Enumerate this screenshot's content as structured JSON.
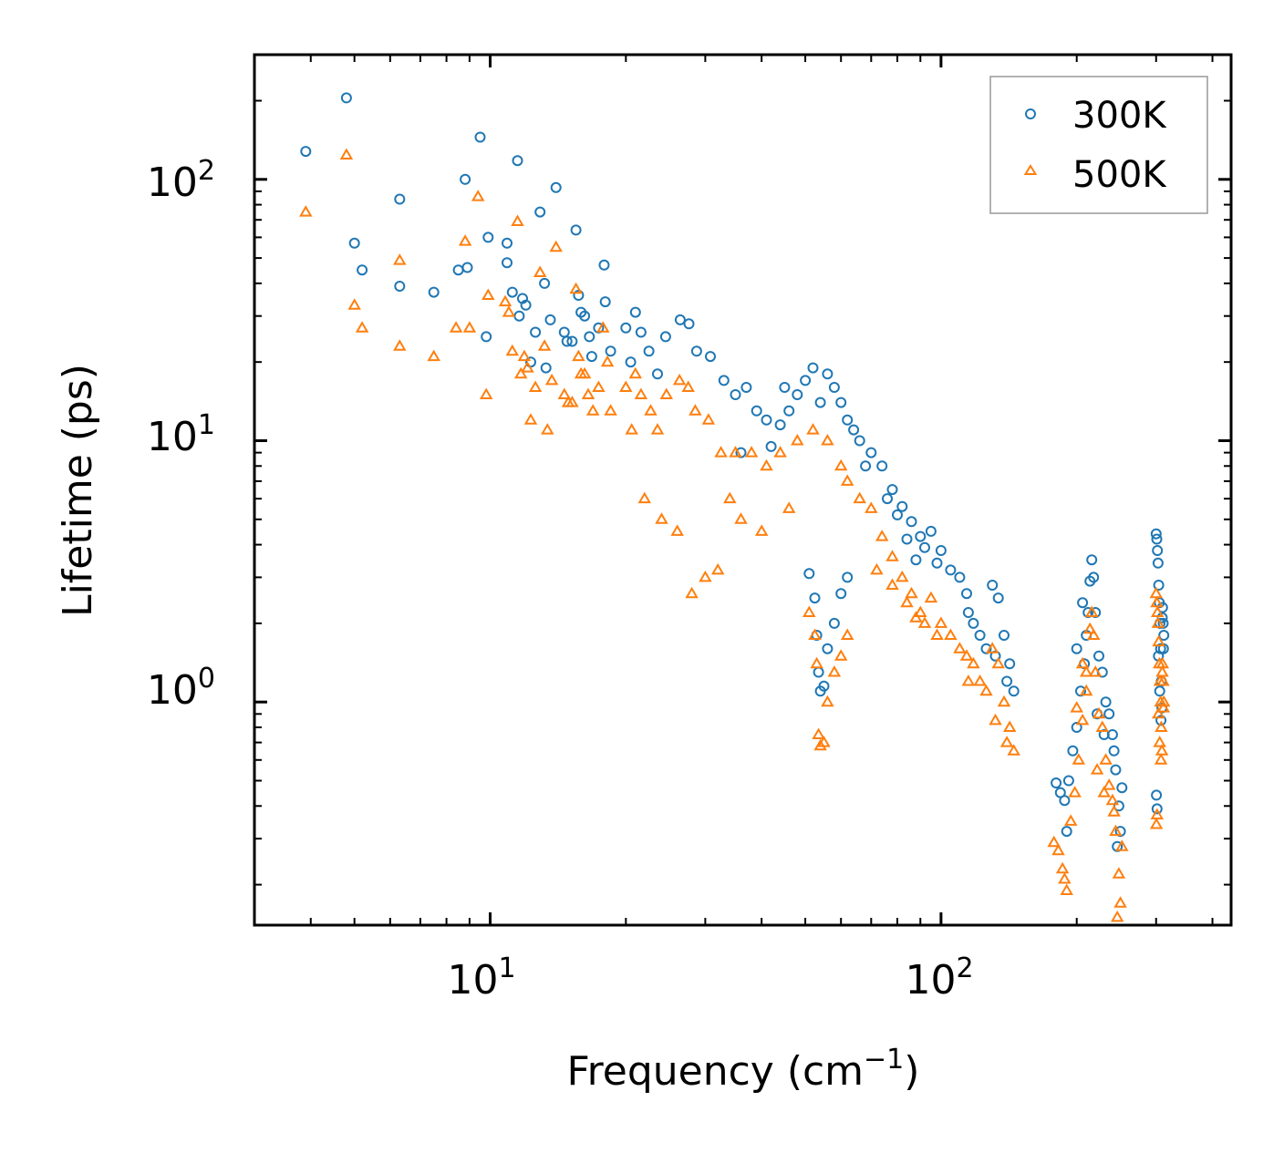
{
  "chart_data": {
    "type": "scatter",
    "title": "",
    "xlabel": "Frequency (cm",
    "xlabel_sup": "−1",
    "xlabel_suffix": ")",
    "ylabel": "Lifetime (ps)",
    "xscale": "log",
    "yscale": "log",
    "xlim": [
      3.0,
      440
    ],
    "ylim": [
      0.14,
      300
    ],
    "x_ticks": [
      {
        "base": "10",
        "exp": "1",
        "value": 10
      },
      {
        "base": "10",
        "exp": "2",
        "value": 100
      }
    ],
    "y_ticks": [
      {
        "base": "10",
        "exp": "0",
        "value": 1
      },
      {
        "base": "10",
        "exp": "1",
        "value": 10
      },
      {
        "base": "10",
        "exp": "2",
        "value": 100
      }
    ],
    "grid": false,
    "legend": {
      "position": "top-right"
    },
    "series": [
      {
        "name": "300K",
        "marker": "circle",
        "color": "#1f77b4",
        "points": [
          [
            3.9,
            128
          ],
          [
            4.8,
            205
          ],
          [
            5.0,
            57
          ],
          [
            5.2,
            45
          ],
          [
            6.3,
            84
          ],
          [
            6.3,
            39
          ],
          [
            7.5,
            37
          ],
          [
            8.5,
            45
          ],
          [
            8.8,
            100
          ],
          [
            8.9,
            46
          ],
          [
            9.5,
            145
          ],
          [
            9.8,
            25
          ],
          [
            9.9,
            60
          ],
          [
            10.9,
            57
          ],
          [
            10.9,
            48
          ],
          [
            11.2,
            37
          ],
          [
            11.5,
            118
          ],
          [
            11.6,
            30
          ],
          [
            11.8,
            35
          ],
          [
            12.0,
            33
          ],
          [
            12.3,
            20
          ],
          [
            12.6,
            26
          ],
          [
            12.9,
            75
          ],
          [
            13.2,
            40
          ],
          [
            13.3,
            19
          ],
          [
            13.6,
            29
          ],
          [
            14.0,
            93
          ],
          [
            14.6,
            26
          ],
          [
            14.8,
            24
          ],
          [
            15.2,
            24
          ],
          [
            15.5,
            64
          ],
          [
            15.7,
            36
          ],
          [
            15.9,
            31
          ],
          [
            16.2,
            30
          ],
          [
            16.6,
            25
          ],
          [
            16.8,
            21
          ],
          [
            17.4,
            27
          ],
          [
            17.9,
            47
          ],
          [
            18.0,
            34
          ],
          [
            18.5,
            22
          ],
          [
            20.0,
            27
          ],
          [
            20.5,
            20
          ],
          [
            21.0,
            31
          ],
          [
            21.6,
            26
          ],
          [
            22.5,
            22
          ],
          [
            23.5,
            18
          ],
          [
            24.5,
            25
          ],
          [
            26.4,
            29
          ],
          [
            27.6,
            28
          ],
          [
            28.7,
            22
          ],
          [
            30.8,
            21
          ],
          [
            33.0,
            17
          ],
          [
            35.0,
            15
          ],
          [
            37.0,
            16
          ],
          [
            39.0,
            13
          ],
          [
            41.0,
            12
          ],
          [
            45.0,
            16
          ],
          [
            48.0,
            15
          ],
          [
            52.0,
            19
          ],
          [
            56.0,
            18
          ],
          [
            58.0,
            16
          ],
          [
            60.0,
            14
          ],
          [
            62.0,
            12
          ],
          [
            66.0,
            10
          ],
          [
            70.0,
            9
          ],
          [
            74.0,
            8
          ],
          [
            78.0,
            6.5
          ],
          [
            82.0,
            5.6
          ],
          [
            86.0,
            4.9
          ],
          [
            90.0,
            4.3
          ],
          [
            95.0,
            4.5
          ],
          [
            100.0,
            3.8
          ],
          [
            105.0,
            3.2
          ],
          [
            110.0,
            3.0
          ],
          [
            114.0,
            2.6
          ],
          [
            118.0,
            2.0
          ],
          [
            122.0,
            1.8
          ],
          [
            126.0,
            1.6
          ],
          [
            130.0,
            2.8
          ],
          [
            134.0,
            2.5
          ],
          [
            138.0,
            1.8
          ],
          [
            142.0,
            1.4
          ],
          [
            145.0,
            1.1
          ],
          [
            140.0,
            1.2
          ],
          [
            132.0,
            1.5
          ],
          [
            115.0,
            2.2
          ],
          [
            98.0,
            3.4
          ],
          [
            92.0,
            3.9
          ],
          [
            88.0,
            3.5
          ],
          [
            84.0,
            4.2
          ],
          [
            42.0,
            9.5
          ],
          [
            44.0,
            11.5
          ],
          [
            46.0,
            13
          ],
          [
            50.0,
            17
          ],
          [
            54.0,
            14
          ],
          [
            64.0,
            11
          ],
          [
            68.0,
            8
          ],
          [
            76.0,
            6
          ],
          [
            80.0,
            5.2
          ],
          [
            36.0,
            9
          ],
          [
            52.5,
            2.5
          ],
          [
            53.0,
            1.8
          ],
          [
            53.5,
            1.3
          ],
          [
            54.0,
            1.1
          ],
          [
            55.0,
            1.15
          ],
          [
            56.0,
            1.6
          ],
          [
            58.0,
            2.0
          ],
          [
            60.0,
            2.6
          ],
          [
            62.0,
            3.0
          ],
          [
            51.0,
            3.1
          ],
          [
            180.0,
            0.49
          ],
          [
            184.0,
            0.45
          ],
          [
            188.0,
            0.42
          ],
          [
            192.0,
            0.5
          ],
          [
            196.0,
            0.65
          ],
          [
            200.0,
            0.8
          ],
          [
            204.0,
            1.1
          ],
          [
            208.0,
            1.4
          ],
          [
            212.0,
            2.2
          ],
          [
            214.0,
            2.9
          ],
          [
            216.0,
            3.5
          ],
          [
            218.0,
            3.0
          ],
          [
            220.0,
            2.2
          ],
          [
            224.0,
            1.5
          ],
          [
            228.0,
            1.3
          ],
          [
            232.0,
            1.0
          ],
          [
            236.0,
            0.9
          ],
          [
            240.0,
            0.75
          ],
          [
            244.0,
            0.55
          ],
          [
            248.0,
            0.4
          ],
          [
            250.0,
            0.32
          ],
          [
            246.0,
            0.28
          ],
          [
            252.0,
            0.47
          ],
          [
            200.0,
            1.6
          ],
          [
            206.0,
            2.4
          ],
          [
            222.0,
            0.9
          ],
          [
            230.0,
            0.75
          ],
          [
            242.0,
            0.65
          ],
          [
            190.0,
            0.32
          ],
          [
            210.0,
            1.8
          ],
          [
            300.0,
            4.4
          ],
          [
            301.0,
            4.2
          ],
          [
            302.0,
            3.8
          ],
          [
            303.0,
            3.4
          ],
          [
            304.0,
            2.8
          ],
          [
            305.0,
            2.4
          ],
          [
            306.0,
            2.0
          ],
          [
            307.0,
            1.6
          ],
          [
            308.0,
            1.2
          ],
          [
            309.0,
            0.95
          ],
          [
            310.0,
            2.3
          ],
          [
            311.0,
            2.0
          ],
          [
            312.0,
            1.8
          ],
          [
            300.5,
            0.44
          ],
          [
            301.5,
            0.39
          ],
          [
            303.5,
            1.5
          ],
          [
            305.5,
            1.1
          ],
          [
            307.5,
            0.85
          ],
          [
            309.5,
            2.1
          ],
          [
            311.5,
            1.6
          ]
        ]
      },
      {
        "name": "500K",
        "marker": "triangle",
        "color": "#ff7f0e",
        "points": [
          [
            3.9,
            75
          ],
          [
            4.8,
            124
          ],
          [
            5.0,
            33
          ],
          [
            5.2,
            27
          ],
          [
            6.3,
            49
          ],
          [
            6.3,
            23
          ],
          [
            7.5,
            21
          ],
          [
            8.4,
            27
          ],
          [
            8.8,
            58
          ],
          [
            9.0,
            27
          ],
          [
            9.4,
            86
          ],
          [
            9.8,
            15
          ],
          [
            9.9,
            36
          ],
          [
            10.8,
            34
          ],
          [
            11.0,
            31
          ],
          [
            11.2,
            22
          ],
          [
            11.5,
            69
          ],
          [
            11.7,
            18
          ],
          [
            11.9,
            21
          ],
          [
            12.1,
            19
          ],
          [
            12.3,
            12
          ],
          [
            12.6,
            16
          ],
          [
            12.9,
            44
          ],
          [
            13.2,
            23
          ],
          [
            13.4,
            11
          ],
          [
            13.7,
            17
          ],
          [
            14.0,
            55
          ],
          [
            14.6,
            15
          ],
          [
            14.9,
            14
          ],
          [
            15.2,
            14
          ],
          [
            15.5,
            38
          ],
          [
            15.7,
            21
          ],
          [
            15.9,
            18
          ],
          [
            16.2,
            18
          ],
          [
            16.5,
            15
          ],
          [
            16.9,
            13
          ],
          [
            17.4,
            16
          ],
          [
            17.8,
            27
          ],
          [
            18.2,
            20
          ],
          [
            18.5,
            13
          ],
          [
            20.0,
            16
          ],
          [
            20.6,
            11
          ],
          [
            21.0,
            18
          ],
          [
            21.6,
            15
          ],
          [
            22.7,
            13
          ],
          [
            23.5,
            11
          ],
          [
            24.6,
            15
          ],
          [
            26.3,
            17
          ],
          [
            27.5,
            16
          ],
          [
            28.5,
            13
          ],
          [
            30.5,
            12
          ],
          [
            32.5,
            9
          ],
          [
            35.0,
            9
          ],
          [
            38.0,
            9
          ],
          [
            41.0,
            8
          ],
          [
            44.0,
            9
          ],
          [
            48.0,
            10
          ],
          [
            52.0,
            11
          ],
          [
            56.0,
            10
          ],
          [
            60.0,
            8
          ],
          [
            62.0,
            7
          ],
          [
            66.0,
            6
          ],
          [
            70.0,
            5.5
          ],
          [
            74.0,
            4.3
          ],
          [
            78.0,
            3.6
          ],
          [
            82.0,
            3.0
          ],
          [
            86.0,
            2.6
          ],
          [
            90.0,
            2.2
          ],
          [
            95.0,
            2.5
          ],
          [
            100.0,
            2.0
          ],
          [
            105.0,
            1.8
          ],
          [
            110.0,
            1.6
          ],
          [
            114.0,
            1.5
          ],
          [
            118.0,
            1.4
          ],
          [
            122.0,
            1.2
          ],
          [
            126.0,
            1.1
          ],
          [
            130.0,
            1.6
          ],
          [
            134.0,
            1.4
          ],
          [
            138.0,
            1.0
          ],
          [
            142.0,
            0.8
          ],
          [
            145.0,
            0.65
          ],
          [
            140.0,
            0.7
          ],
          [
            132.0,
            0.85
          ],
          [
            115.0,
            1.2
          ],
          [
            98.0,
            1.8
          ],
          [
            92.0,
            2.0
          ],
          [
            88.0,
            2.1
          ],
          [
            84.0,
            2.4
          ],
          [
            78.0,
            2.8
          ],
          [
            72.0,
            3.2
          ],
          [
            30.0,
            3.0
          ],
          [
            32.0,
            3.2
          ],
          [
            28.0,
            2.6
          ],
          [
            26.0,
            4.5
          ],
          [
            24.0,
            5.0
          ],
          [
            22.0,
            6.0
          ],
          [
            36.0,
            5.0
          ],
          [
            40.0,
            4.5
          ],
          [
            46.0,
            5.5
          ],
          [
            34.0,
            6.0
          ],
          [
            52.5,
            1.8
          ],
          [
            53.0,
            1.4
          ],
          [
            53.5,
            0.75
          ],
          [
            54.0,
            0.68
          ],
          [
            55.0,
            0.7
          ],
          [
            56.0,
            1.0
          ],
          [
            58.0,
            1.3
          ],
          [
            60.0,
            1.5
          ],
          [
            62.0,
            1.8
          ],
          [
            51.0,
            2.2
          ],
          [
            178.0,
            0.29
          ],
          [
            182.0,
            0.27
          ],
          [
            186.0,
            0.23
          ],
          [
            190.0,
            0.19
          ],
          [
            194.0,
            0.35
          ],
          [
            198.0,
            0.45
          ],
          [
            202.0,
            0.6
          ],
          [
            206.0,
            0.85
          ],
          [
            210.0,
            1.3
          ],
          [
            214.0,
            1.9
          ],
          [
            216.0,
            2.2
          ],
          [
            218.0,
            1.8
          ],
          [
            220.0,
            1.3
          ],
          [
            224.0,
            0.9
          ],
          [
            228.0,
            0.8
          ],
          [
            232.0,
            0.6
          ],
          [
            236.0,
            0.48
          ],
          [
            240.0,
            0.42
          ],
          [
            244.0,
            0.32
          ],
          [
            248.0,
            0.22
          ],
          [
            250.0,
            0.17
          ],
          [
            246.0,
            0.15
          ],
          [
            252.0,
            0.28
          ],
          [
            200.0,
            0.95
          ],
          [
            206.0,
            1.4
          ],
          [
            222.0,
            0.55
          ],
          [
            230.0,
            0.45
          ],
          [
            242.0,
            0.38
          ],
          [
            188.0,
            0.21
          ],
          [
            210.0,
            1.1
          ],
          [
            300.0,
            2.6
          ],
          [
            301.0,
            2.4
          ],
          [
            302.0,
            2.2
          ],
          [
            303.0,
            2.0
          ],
          [
            304.0,
            1.7
          ],
          [
            305.0,
            1.4
          ],
          [
            306.0,
            1.2
          ],
          [
            307.0,
            1.0
          ],
          [
            308.0,
            0.8
          ],
          [
            309.0,
            0.65
          ],
          [
            310.0,
            1.4
          ],
          [
            311.0,
            1.2
          ],
          [
            312.0,
            1.0
          ],
          [
            300.5,
            0.34
          ],
          [
            301.5,
            0.37
          ],
          [
            303.5,
            0.9
          ],
          [
            305.5,
            0.7
          ],
          [
            307.5,
            0.6
          ],
          [
            309.5,
            1.3
          ],
          [
            311.5,
            0.95
          ]
        ]
      }
    ]
  }
}
